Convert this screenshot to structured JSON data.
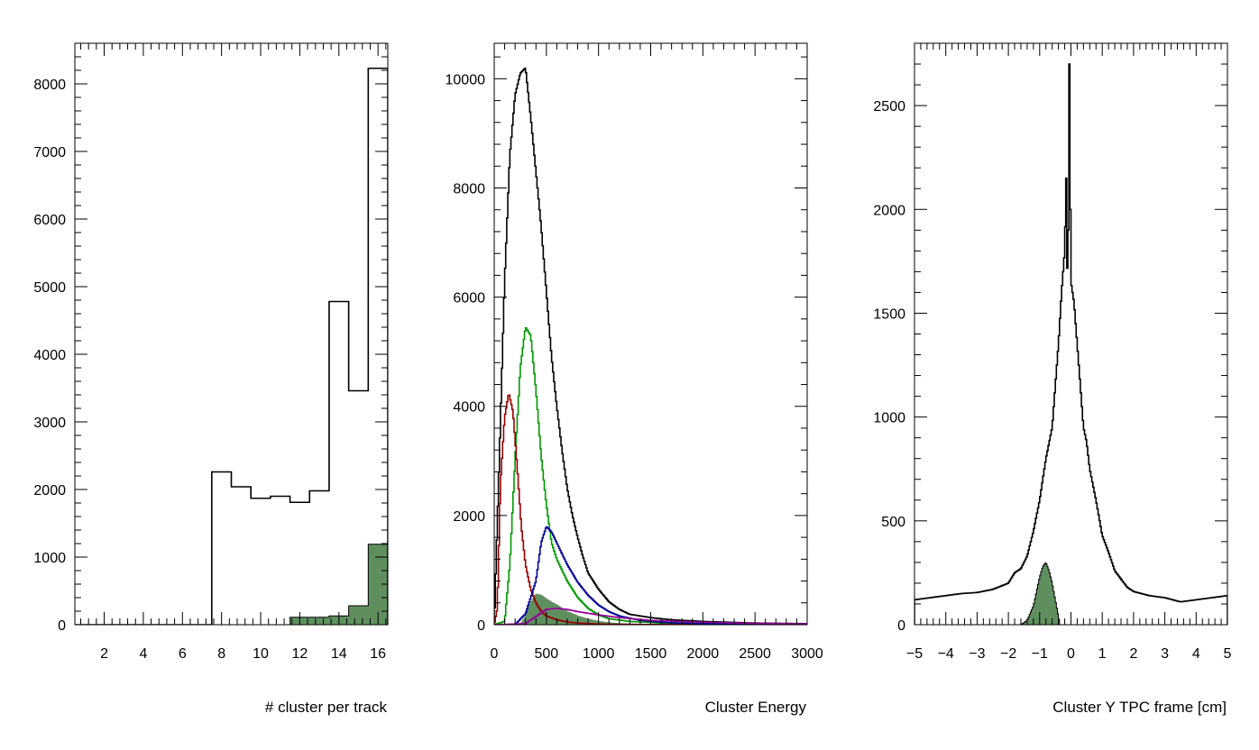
{
  "chart_data": [
    {
      "type": "histogram",
      "xlabel": "# cluster per track",
      "ylabel": "",
      "xlim": [
        0.5,
        16.5
      ],
      "ylim": [
        0,
        8600
      ],
      "xticks": [
        2,
        4,
        6,
        8,
        10,
        12,
        14,
        16
      ],
      "yticks": [
        0,
        1000,
        2000,
        3000,
        4000,
        5000,
        6000,
        7000,
        8000
      ],
      "bin_edges": [
        0.5,
        1.5,
        2.5,
        3.5,
        4.5,
        5.5,
        6.5,
        7.5,
        8.5,
        9.5,
        10.5,
        11.5,
        12.5,
        13.5,
        14.5,
        15.5,
        16.5
      ],
      "series": [
        {
          "kind": "outline",
          "color": "#000000",
          "values": [
            0,
            0,
            0,
            0,
            0,
            0,
            0,
            2260,
            2040,
            1870,
            1900,
            1810,
            1980,
            4780,
            3460,
            8230
          ]
        },
        {
          "kind": "filled",
          "color": "#000000",
          "fill": "#5f8f5f",
          "values": [
            0,
            0,
            0,
            0,
            0,
            0,
            0,
            0,
            0,
            0,
            0,
            110,
            110,
            130,
            280,
            1190
          ]
        }
      ]
    },
    {
      "type": "histogram",
      "xlabel": "Cluster Energy",
      "ylabel": "",
      "xlim": [
        0,
        3000
      ],
      "ylim": [
        0,
        10650
      ],
      "xticks": [
        0,
        500,
        1000,
        1500,
        2000,
        2500,
        3000
      ],
      "yticks": [
        0,
        2000,
        4000,
        6000,
        8000,
        10000
      ],
      "series": [
        {
          "kind": "outline",
          "color": "#000000",
          "x": [
            0,
            50,
            100,
            150,
            200,
            250,
            300,
            350,
            400,
            450,
            500,
            550,
            600,
            650,
            700,
            750,
            800,
            850,
            900,
            1000,
            1100,
            1200,
            1300,
            1500,
            1700,
            2000,
            2500,
            3000
          ],
          "y": [
            0,
            3100,
            6300,
            8600,
            9700,
            10100,
            10200,
            9300,
            8300,
            7300,
            6100,
            4900,
            4000,
            3200,
            2500,
            2000,
            1600,
            1250,
            950,
            650,
            420,
            280,
            190,
            130,
            90,
            60,
            30,
            20
          ]
        },
        {
          "kind": "outline",
          "color": "#009900",
          "x": [
            0,
            100,
            150,
            200,
            250,
            300,
            350,
            400,
            450,
            500,
            550,
            600,
            700,
            800,
            900,
            1000,
            1100,
            1300,
            1600,
            2000,
            3000
          ],
          "y": [
            0,
            60,
            1100,
            3000,
            4700,
            5450,
            5300,
            4300,
            3100,
            2200,
            1500,
            1200,
            800,
            500,
            300,
            180,
            110,
            60,
            30,
            15,
            5
          ]
        },
        {
          "kind": "outline",
          "color": "#990000",
          "x": [
            0,
            30,
            60,
            100,
            140,
            180,
            220,
            260,
            300,
            350,
            400,
            450,
            500,
            600,
            700,
            800,
            1000,
            1200,
            3000
          ],
          "y": [
            0,
            300,
            2600,
            3800,
            4250,
            3900,
            2900,
            1800,
            1100,
            650,
            400,
            250,
            160,
            90,
            50,
            30,
            12,
            5,
            0
          ]
        },
        {
          "kind": "outline",
          "color": "#000099",
          "x": [
            0,
            200,
            300,
            400,
            450,
            500,
            550,
            600,
            650,
            700,
            800,
            900,
            1000,
            1100,
            1200,
            1400,
            1600,
            1800,
            2000,
            2500,
            3000
          ],
          "y": [
            0,
            0,
            200,
            800,
            1500,
            1800,
            1700,
            1500,
            1300,
            1100,
            780,
            540,
            360,
            240,
            160,
            80,
            45,
            30,
            20,
            10,
            5
          ]
        },
        {
          "kind": "outline",
          "color": "#990099",
          "x": [
            0,
            300,
            400,
            500,
            600,
            700,
            800,
            1000,
            1200,
            1500,
            2000,
            2500,
            3000
          ],
          "y": [
            0,
            20,
            150,
            280,
            300,
            280,
            240,
            180,
            130,
            80,
            45,
            25,
            15
          ]
        },
        {
          "kind": "filled",
          "color": "#5f8f5f",
          "fill": "#5f8f5f",
          "x": [
            0,
            250,
            300,
            350,
            400,
            450,
            500,
            550,
            600,
            650,
            700,
            800,
            900,
            1000,
            1100,
            1200,
            1500
          ],
          "y": [
            0,
            0,
            150,
            400,
            560,
            540,
            470,
            410,
            360,
            300,
            240,
            160,
            100,
            60,
            35,
            20,
            0
          ]
        }
      ]
    },
    {
      "type": "histogram",
      "xlabel": "Cluster Y TPC frame [cm]",
      "ylabel": "",
      "xlim": [
        -5,
        5
      ],
      "ylim": [
        0,
        2800
      ],
      "xticks": [
        -5,
        -4,
        -3,
        -2,
        -1,
        0,
        1,
        2,
        3,
        4,
        5
      ],
      "yticks": [
        0,
        500,
        1000,
        1500,
        2000,
        2500
      ],
      "series": [
        {
          "kind": "outline",
          "color": "#000000",
          "x": [
            -5,
            -4.5,
            -4,
            -3.5,
            -3,
            -2.5,
            -2,
            -1.8,
            -1.6,
            -1.4,
            -1.2,
            -1.0,
            -0.8,
            -0.6,
            -0.5,
            -0.4,
            -0.3,
            -0.2,
            -0.15,
            -0.1,
            -0.05,
            0,
            0.1,
            0.2,
            0.3,
            0.4,
            0.5,
            0.6,
            0.8,
            1.0,
            1.2,
            1.4,
            1.6,
            1.8,
            2.0,
            2.5,
            3,
            3.5,
            4,
            4.5,
            5
          ],
          "y": [
            120,
            130,
            140,
            150,
            155,
            170,
            200,
            250,
            270,
            330,
            450,
            600,
            800,
            950,
            1150,
            1350,
            1600,
            1800,
            2150,
            1500,
            2700,
            1650,
            1550,
            1350,
            1150,
            950,
            880,
            750,
            600,
            430,
            350,
            260,
            220,
            180,
            160,
            140,
            130,
            110,
            120,
            130,
            140
          ]
        },
        {
          "kind": "filled",
          "color": "#000000",
          "fill": "#5f8f5f",
          "x": [
            -1.6,
            -1.4,
            -1.2,
            -1.1,
            -1.0,
            -0.9,
            -0.8,
            -0.7,
            -0.6,
            -0.5,
            -0.4,
            -0.35
          ],
          "y": [
            0,
            20,
            90,
            160,
            230,
            280,
            300,
            260,
            200,
            120,
            40,
            0
          ]
        }
      ]
    }
  ]
}
